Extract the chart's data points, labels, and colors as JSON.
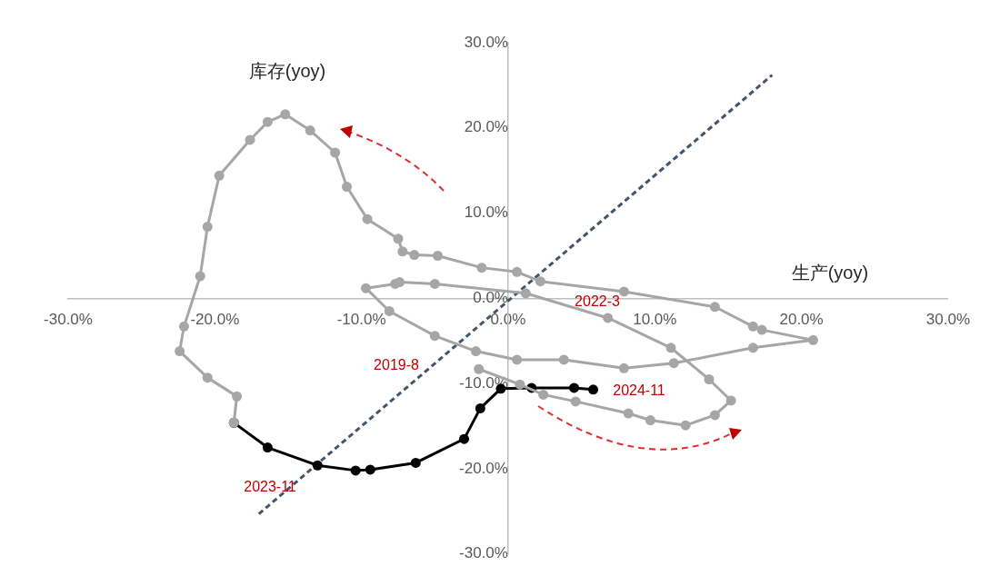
{
  "chart_data": {
    "type": "line",
    "xlabel": "生产(yoy)",
    "ylabel": "库存(yoy)",
    "xlim": [
      -30,
      30
    ],
    "ylim": [
      -30,
      30
    ],
    "xticks": [
      {
        "value": -30,
        "label": "-30.0%"
      },
      {
        "value": -20,
        "label": "-20.0%"
      },
      {
        "value": -10,
        "label": "-10.0%"
      },
      {
        "value": 0,
        "label": "0.0%"
      },
      {
        "value": 10,
        "label": "10.0%"
      },
      {
        "value": 20,
        "label": "20.0%"
      },
      {
        "value": 30,
        "label": "30.0%"
      }
    ],
    "yticks": [
      {
        "value": -30,
        "label": "-30.0%"
      },
      {
        "value": -20,
        "label": "-20.0%"
      },
      {
        "value": -10,
        "label": "-10.0%"
      },
      {
        "value": 0,
        "label": "0.0%"
      },
      {
        "value": 10,
        "label": "10.0%"
      },
      {
        "value": 20,
        "label": "20.0%"
      },
      {
        "value": 30,
        "label": "30.0%"
      }
    ],
    "grid": false,
    "legend": false,
    "series": [
      {
        "color": "#a6a6a6",
        "marker": "circle",
        "line_style": "solid",
        "x": [
          -2.0,
          0.8,
          2.4,
          4.6,
          8.2,
          9.7,
          12.1,
          14.1,
          15.2,
          13.7,
          11.1,
          6.8,
          1.2,
          -5.0,
          -7.4,
          -7.7,
          -9.7,
          -8.1,
          -5.0,
          -2.2,
          0.6,
          3.8,
          7.9,
          11.3,
          16.7,
          20.8,
          17.3,
          16.7,
          14.1,
          7.9,
          2.2,
          0.6,
          -1.8,
          -4.8,
          -6.4,
          -7.2,
          -7.5,
          -9.6,
          -11.0,
          -11.8,
          -13.5,
          -15.2,
          -16.4,
          -17.6,
          -19.7,
          -20.5,
          -21.0,
          -22.1,
          -22.4,
          -20.5,
          -18.5,
          -18.7
        ],
        "values": [
          -8.3,
          -10.1,
          -11.3,
          -12.1,
          -13.5,
          -14.3,
          -14.9,
          -13.7,
          -12.0,
          -9.5,
          -5.8,
          -2.3,
          0.6,
          1.7,
          1.9,
          1.7,
          1.2,
          -1.5,
          -4.4,
          -6.2,
          -7.2,
          -7.2,
          -8.2,
          -7.6,
          -5.8,
          -4.9,
          -3.7,
          -3.3,
          -1.0,
          0.8,
          2.0,
          3.1,
          3.6,
          5.0,
          5.1,
          5.5,
          7.0,
          9.3,
          13.1,
          17.1,
          19.7,
          21.6,
          20.7,
          18.6,
          14.4,
          8.4,
          2.6,
          -3.3,
          -6.2,
          -9.3,
          -11.5,
          -14.6
        ]
      },
      {
        "color": "#000000",
        "marker": "circle",
        "line_style": "solid",
        "x": [
          -18.7,
          -16.4,
          -13.0,
          -10.4,
          -9.4,
          -6.3,
          -3.0,
          -1.9,
          -0.5,
          1.6,
          4.5,
          5.8
        ],
        "values": [
          -14.6,
          -17.5,
          -19.6,
          -20.2,
          -20.1,
          -19.3,
          -16.5,
          -12.9,
          -10.6,
          -10.5,
          -10.5,
          -10.7
        ]
      },
      {
        "color": "#44546a",
        "marker": "none",
        "line_style": "dashed",
        "x": [
          -17.0,
          18.0
        ],
        "values": [
          -25.3,
          26.2
        ]
      }
    ],
    "annotations": [
      "2022-3",
      "2019-8",
      "2023-11",
      "2024-11"
    ]
  }
}
